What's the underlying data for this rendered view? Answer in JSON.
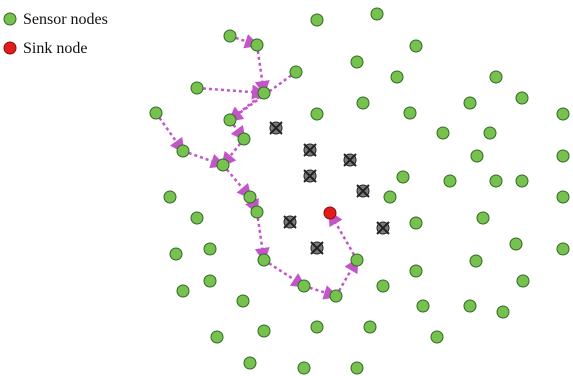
{
  "legend": {
    "sensor_label": "Sensor nodes",
    "sink_label": "Sink node"
  },
  "colors": {
    "sensor_fill": "#77c24f",
    "sensor_stroke": "#2f6a22",
    "sink_fill": "#e21b1b",
    "sink_stroke": "#8a0f0f",
    "failed_fill": "#7b7b7b",
    "failed_stroke": "#222222",
    "route_color": "#c355c9"
  },
  "icons": {
    "sensor": "sensor-node-icon",
    "sink": "sink-node-icon",
    "failed": "failed-node-icon",
    "route": "route-arrow-icon"
  }
}
